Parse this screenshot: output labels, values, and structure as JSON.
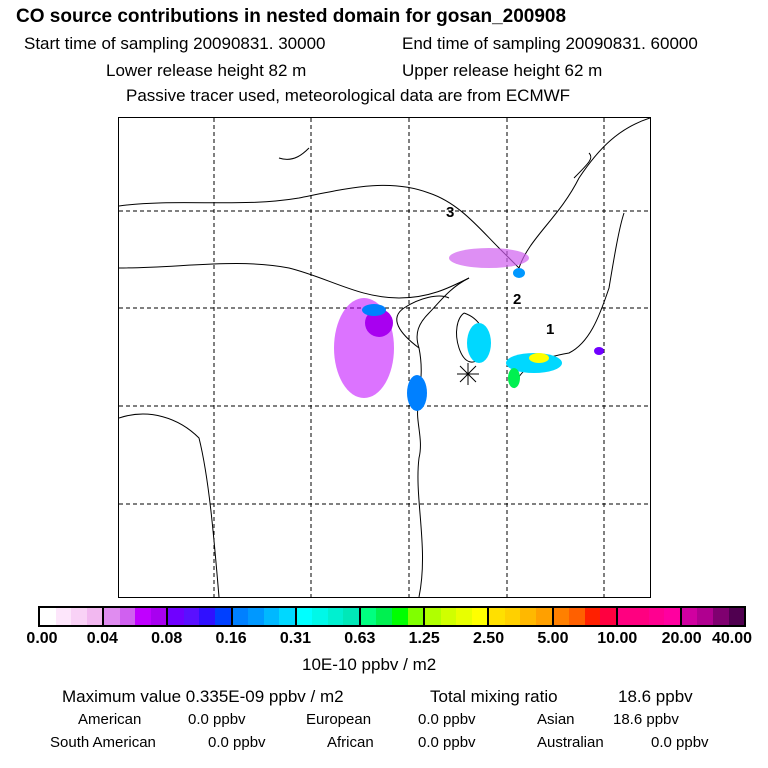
{
  "header": {
    "title": "CO  source contributions in nested domain for gosan_200908",
    "start": "Start time of sampling 20090831. 30000",
    "end": "End time of sampling 20090831. 60000",
    "lower": "Lower release height   82 m",
    "upper": "Upper release height   62 m",
    "tracer": "Passive tracer used, meteorological data are from ECMWF"
  },
  "chart_data": {
    "type": "heatmap",
    "title": "CO  source contributions in nested domain for gosan_200908",
    "colorbar_label": "10E-10 ppbv / m2",
    "colorbar_ticks": [
      "0.00",
      "0.04",
      "0.08",
      "0.16",
      "0.31",
      "0.63",
      "1.25",
      "2.50",
      "5.00",
      "10.00",
      "20.00",
      "40.00"
    ],
    "colorbar_colors": [
      [
        "#ffffff",
        "#fde6fb",
        "#f9d2f6",
        "#f2b8f0"
      ],
      [
        "#e08cf0",
        "#d060f0",
        "#c000ff",
        "#a800f0"
      ],
      [
        "#7000ff",
        "#5a10ff",
        "#3010ff",
        "#0040ff"
      ],
      [
        "#0080ff",
        "#0098ff",
        "#00b8ff",
        "#00d8ff"
      ],
      [
        "#00ffff",
        "#00f8e8",
        "#00f0d0",
        "#00e8b8"
      ],
      [
        "#00ff80",
        "#00f050",
        "#00ff00",
        "#80ff00"
      ],
      [
        "#b0ff00",
        "#d0ff00",
        "#e8ff00",
        "#ffff00"
      ],
      [
        "#ffe000",
        "#ffd000",
        "#ffb800",
        "#ffa000"
      ],
      [
        "#ff8000",
        "#ff6000",
        "#ff2000",
        "#ff0040"
      ],
      [
        "#ff0080",
        "#ff0080",
        "#ff0090",
        "#ff00a0"
      ],
      [
        "#d000a0",
        "#b00090",
        "#800070",
        "#500050"
      ]
    ],
    "annotations": [
      "1",
      "2",
      "3"
    ],
    "grid": true
  },
  "stats": {
    "max": "Maximum value  0.335E-09 ppbv / m2",
    "total_label": "Total mixing ratio",
    "total_value": "18.6 ppbv",
    "regions": [
      {
        "label": "American",
        "value": "0.0 ppbv"
      },
      {
        "label": "European",
        "value": "0.0 ppbv"
      },
      {
        "label": "Asian",
        "value": "18.6 ppbv"
      },
      {
        "label": "South American",
        "value": "0.0 ppbv"
      },
      {
        "label": "African",
        "value": "0.0 ppbv"
      },
      {
        "label": "Australian",
        "value": "0.0 ppbv"
      }
    ]
  }
}
